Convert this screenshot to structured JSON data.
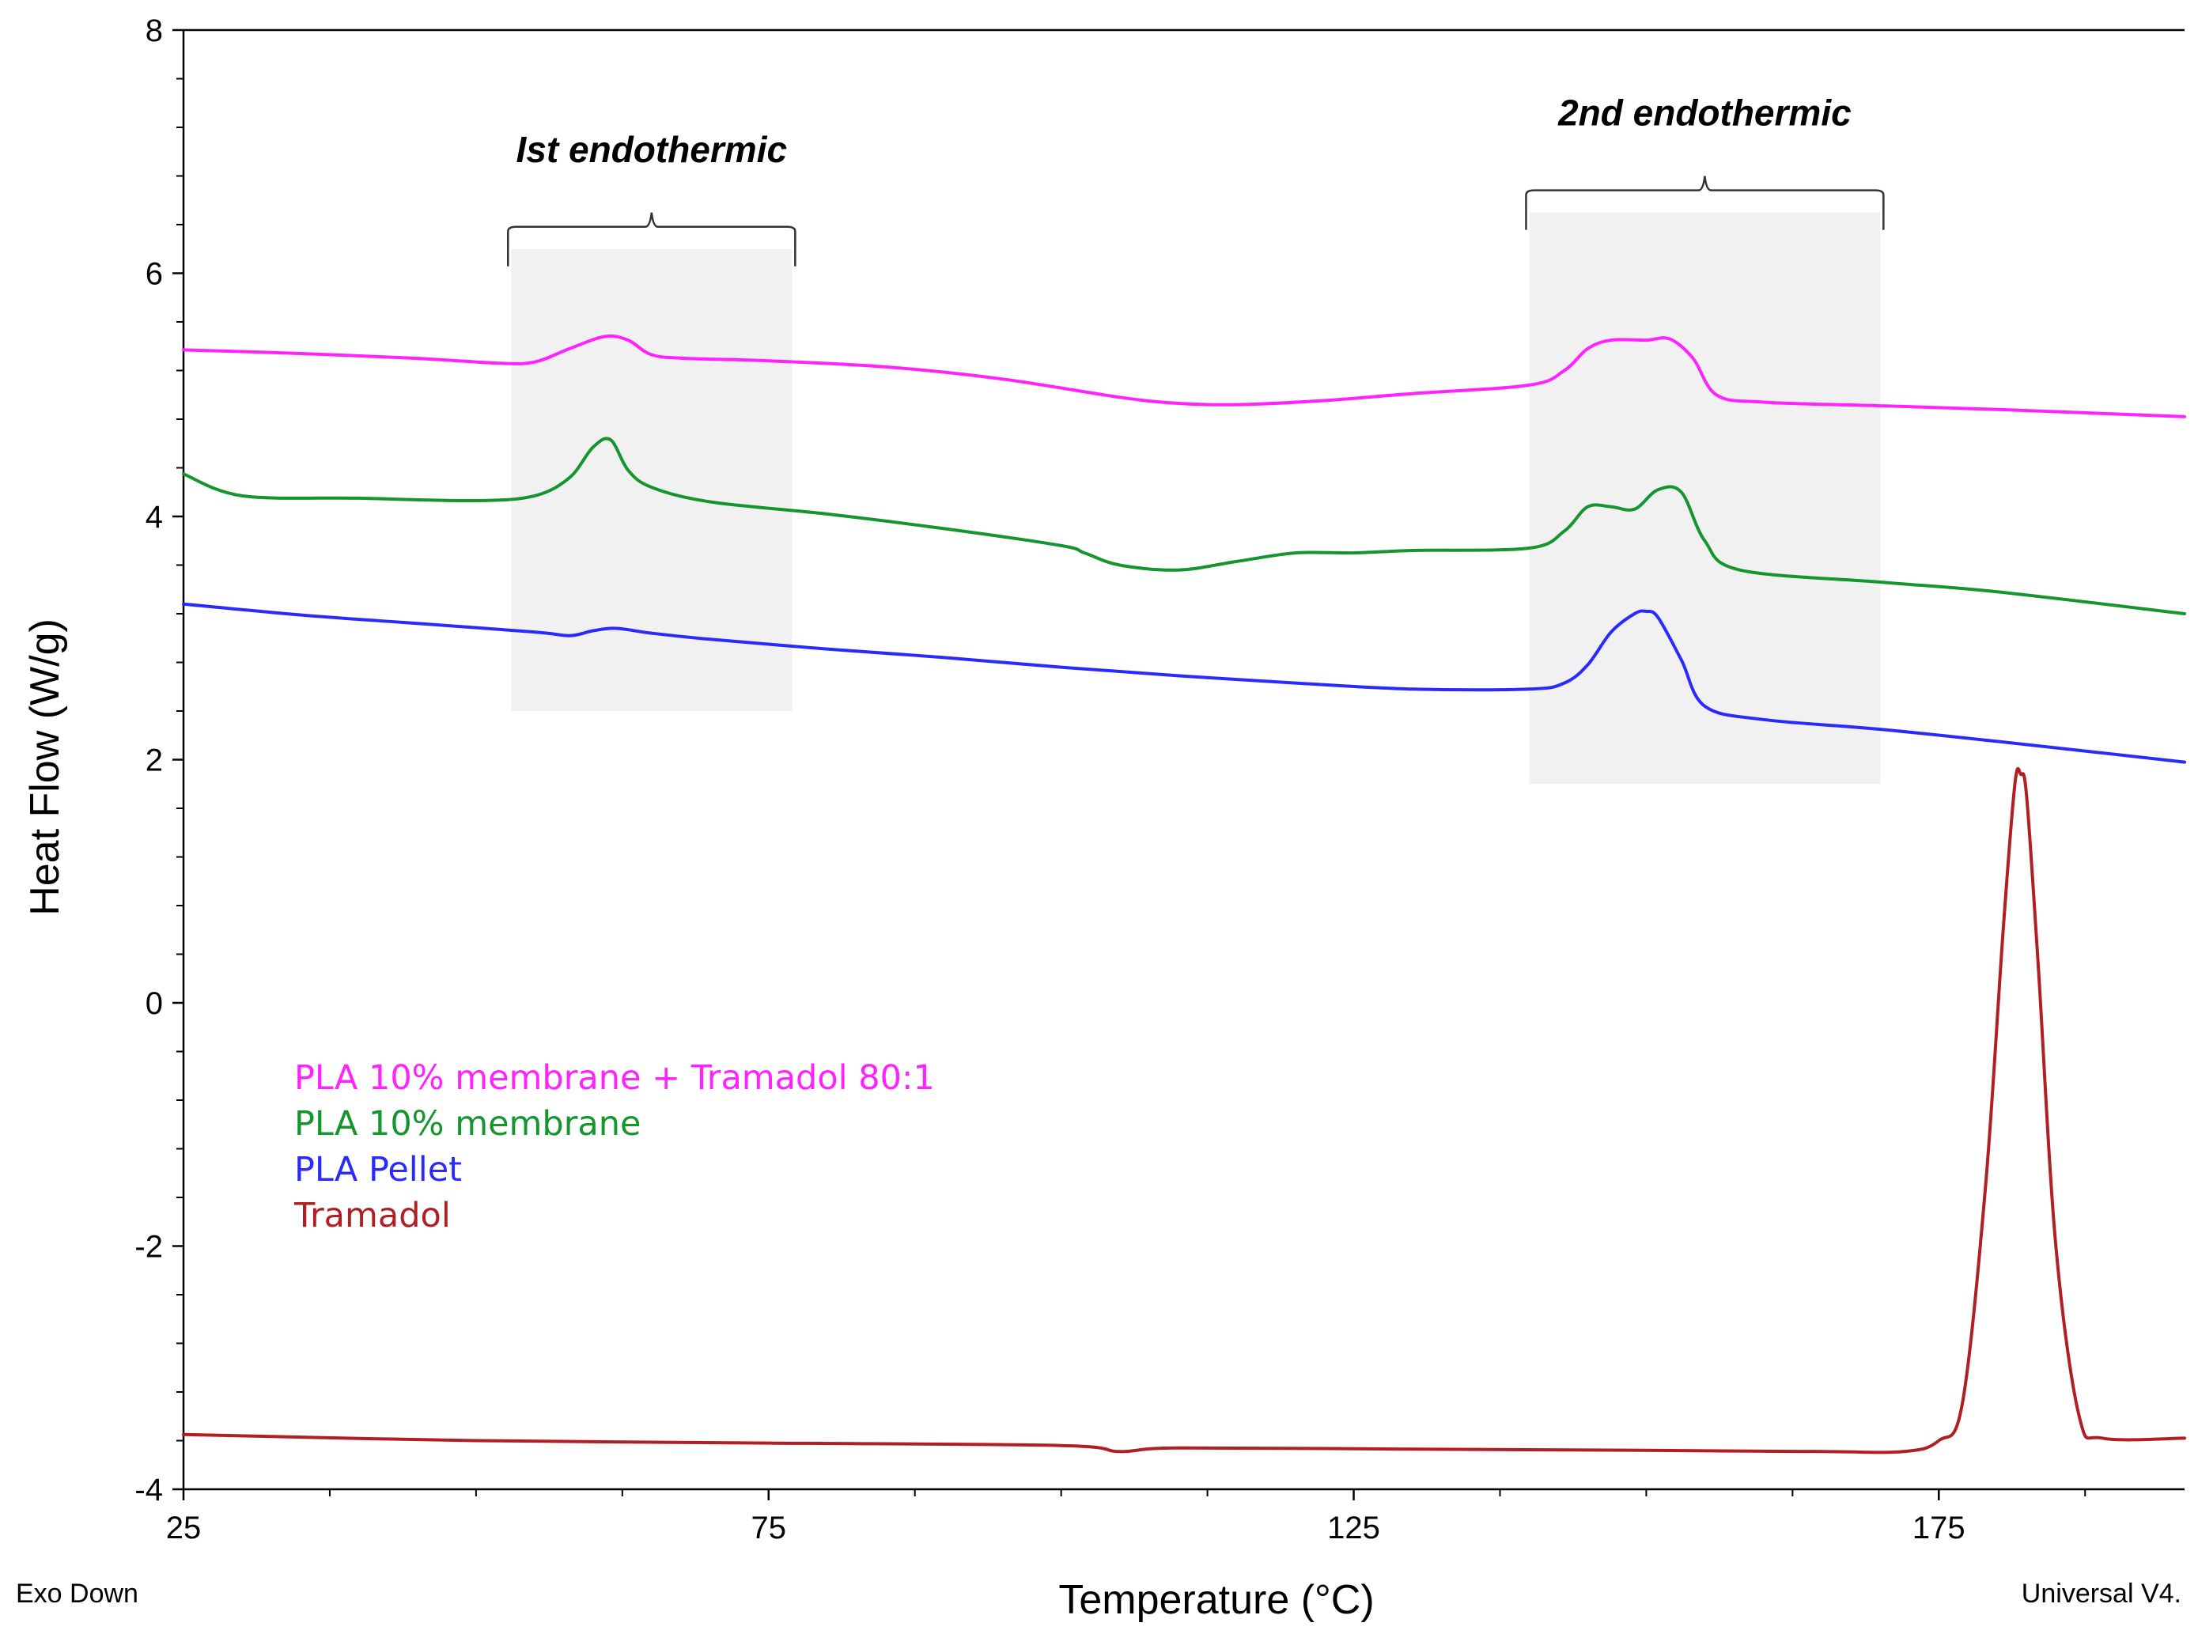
{
  "chart_data": {
    "type": "line",
    "title": "",
    "xlabel": "Temperature (°C)",
    "ylabel": "Heat Flow (W/g)",
    "xlim": [
      25,
      196
    ],
    "ylim": [
      -4,
      8
    ],
    "xticks": [
      25,
      75,
      125,
      175
    ],
    "yticks": [
      -4,
      -2,
      0,
      2,
      4,
      6,
      8
    ],
    "x_tick_labels": [
      "25",
      "75",
      "125",
      "175"
    ],
    "y_tick_labels": [
      "-4",
      "-2",
      "0",
      "2",
      "4",
      "6",
      "8"
    ],
    "corner_left": "Exo Down",
    "corner_right": "Universal V4.",
    "regions": [
      {
        "label": "Ist endothermic",
        "x_start": 53,
        "x_end": 77,
        "y_start": 2.4,
        "y_end": 6.2
      },
      {
        "label": "2nd endothermic",
        "x_start": 140,
        "x_end": 170,
        "y_start": 1.8,
        "y_end": 6.5
      }
    ],
    "series": [
      {
        "name": "PLA 10% membrane + Tramadol 80:1",
        "color": "#ff22ff",
        "x": [
          25,
          35,
          45,
          52,
          55,
          58,
          61,
          63,
          65,
          68,
          75,
          85,
          95,
          105,
          110,
          115,
          122,
          130,
          140,
          143,
          145,
          147,
          150,
          152,
          154,
          156,
          160,
          170,
          180,
          196
        ],
        "y": [
          5.37,
          5.34,
          5.3,
          5.26,
          5.27,
          5.38,
          5.48,
          5.45,
          5.33,
          5.3,
          5.28,
          5.23,
          5.13,
          4.98,
          4.93,
          4.92,
          4.95,
          5.01,
          5.08,
          5.2,
          5.38,
          5.45,
          5.45,
          5.46,
          5.3,
          5.0,
          4.94,
          4.91,
          4.88,
          4.82
        ]
      },
      {
        "name": "PLA 10% membrane",
        "color": "#14952e",
        "x": [
          25,
          30,
          40,
          50,
          55,
          58,
          60,
          61.5,
          63,
          65,
          70,
          80,
          90,
          100,
          102,
          105,
          110,
          115,
          120,
          125,
          130,
          140,
          143,
          145,
          147,
          149,
          151,
          153,
          155,
          158,
          170,
          180,
          196
        ],
        "y": [
          4.35,
          4.17,
          4.15,
          4.13,
          4.17,
          4.32,
          4.57,
          4.63,
          4.38,
          4.24,
          4.12,
          4.02,
          3.9,
          3.76,
          3.7,
          3.6,
          3.56,
          3.63,
          3.7,
          3.7,
          3.72,
          3.74,
          3.88,
          4.08,
          4.08,
          4.06,
          4.22,
          4.2,
          3.8,
          3.56,
          3.46,
          3.38,
          3.2
        ]
      },
      {
        "name": "PLA Pellet",
        "color": "#2a2aff",
        "x": [
          25,
          35,
          45,
          55,
          58,
          60,
          62,
          65,
          70,
          80,
          90,
          100,
          110,
          120,
          130,
          140,
          143,
          145,
          147,
          149,
          150,
          151,
          153,
          155,
          160,
          170,
          180,
          196
        ],
        "y": [
          3.28,
          3.19,
          3.12,
          3.05,
          3.02,
          3.06,
          3.08,
          3.04,
          2.99,
          2.91,
          2.84,
          2.76,
          2.69,
          2.63,
          2.58,
          2.58,
          2.63,
          2.78,
          3.05,
          3.2,
          3.22,
          3.17,
          2.82,
          2.44,
          2.33,
          2.25,
          2.15,
          1.98
        ]
      },
      {
        "name": "Tramadol",
        "color": "#b11f24",
        "x": [
          25,
          50,
          75,
          100,
          105,
          110,
          130,
          150,
          165,
          172,
          175,
          177,
          179,
          180.5,
          181.5,
          182,
          182.5,
          183.5,
          185,
          187,
          189,
          196
        ],
        "y": [
          -3.55,
          -3.6,
          -3.62,
          -3.64,
          -3.69,
          -3.66,
          -3.67,
          -3.68,
          -3.69,
          -3.69,
          -3.6,
          -3.3,
          -1.5,
          0.6,
          1.8,
          1.88,
          1.7,
          0.3,
          -2.0,
          -3.4,
          -3.58,
          -3.58
        ]
      }
    ],
    "legend": [
      "PLA 10% membrane + Tramadol 80:1",
      "PLA 10% membrane",
      "PLA Pellet",
      "Tramadol"
    ],
    "legend_position": "lower-left"
  }
}
